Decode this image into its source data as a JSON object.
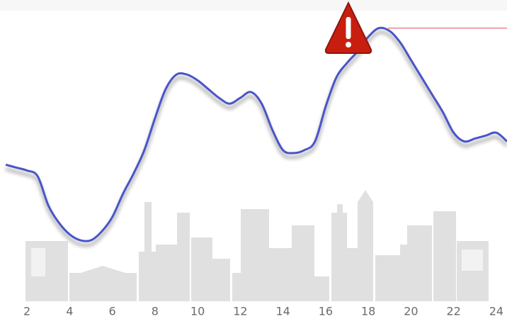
{
  "chart_data": {
    "type": "line",
    "x": [
      1,
      1.5,
      2,
      2.5,
      3,
      3.5,
      4,
      4.5,
      5,
      5.5,
      6,
      6.5,
      7,
      7.5,
      8,
      8.5,
      9,
      9.5,
      10,
      10.5,
      11,
      11.5,
      12,
      12.5,
      13,
      13.5,
      14,
      14.5,
      15,
      15.5,
      16,
      16.5,
      17,
      17.5,
      18,
      18.5,
      19,
      19.5,
      20,
      20.5,
      21,
      21.5,
      22,
      22.5,
      23,
      23.5,
      24,
      24.5
    ],
    "series": [
      {
        "color": "#4a55c8",
        "values": [
          47,
          46,
          45,
          43,
          33,
          27,
          23,
          21,
          21,
          24,
          29,
          37,
          44,
          52,
          63,
          73,
          78,
          78,
          76,
          73,
          70,
          68,
          70,
          72,
          68,
          59,
          52,
          51,
          52,
          55,
          67,
          77,
          82,
          86,
          91,
          94,
          93,
          89,
          83,
          77,
          71,
          65,
          58,
          55,
          56,
          57,
          58,
          55
        ]
      }
    ],
    "threshold": {
      "value": 94,
      "color": "#e8707a"
    },
    "xlim": [
      1,
      24.5
    ],
    "xticks": [
      2,
      4,
      6,
      8,
      10,
      12,
      14,
      16,
      18,
      20,
      22,
      24
    ],
    "ylim": [
      0,
      100
    ]
  }
}
